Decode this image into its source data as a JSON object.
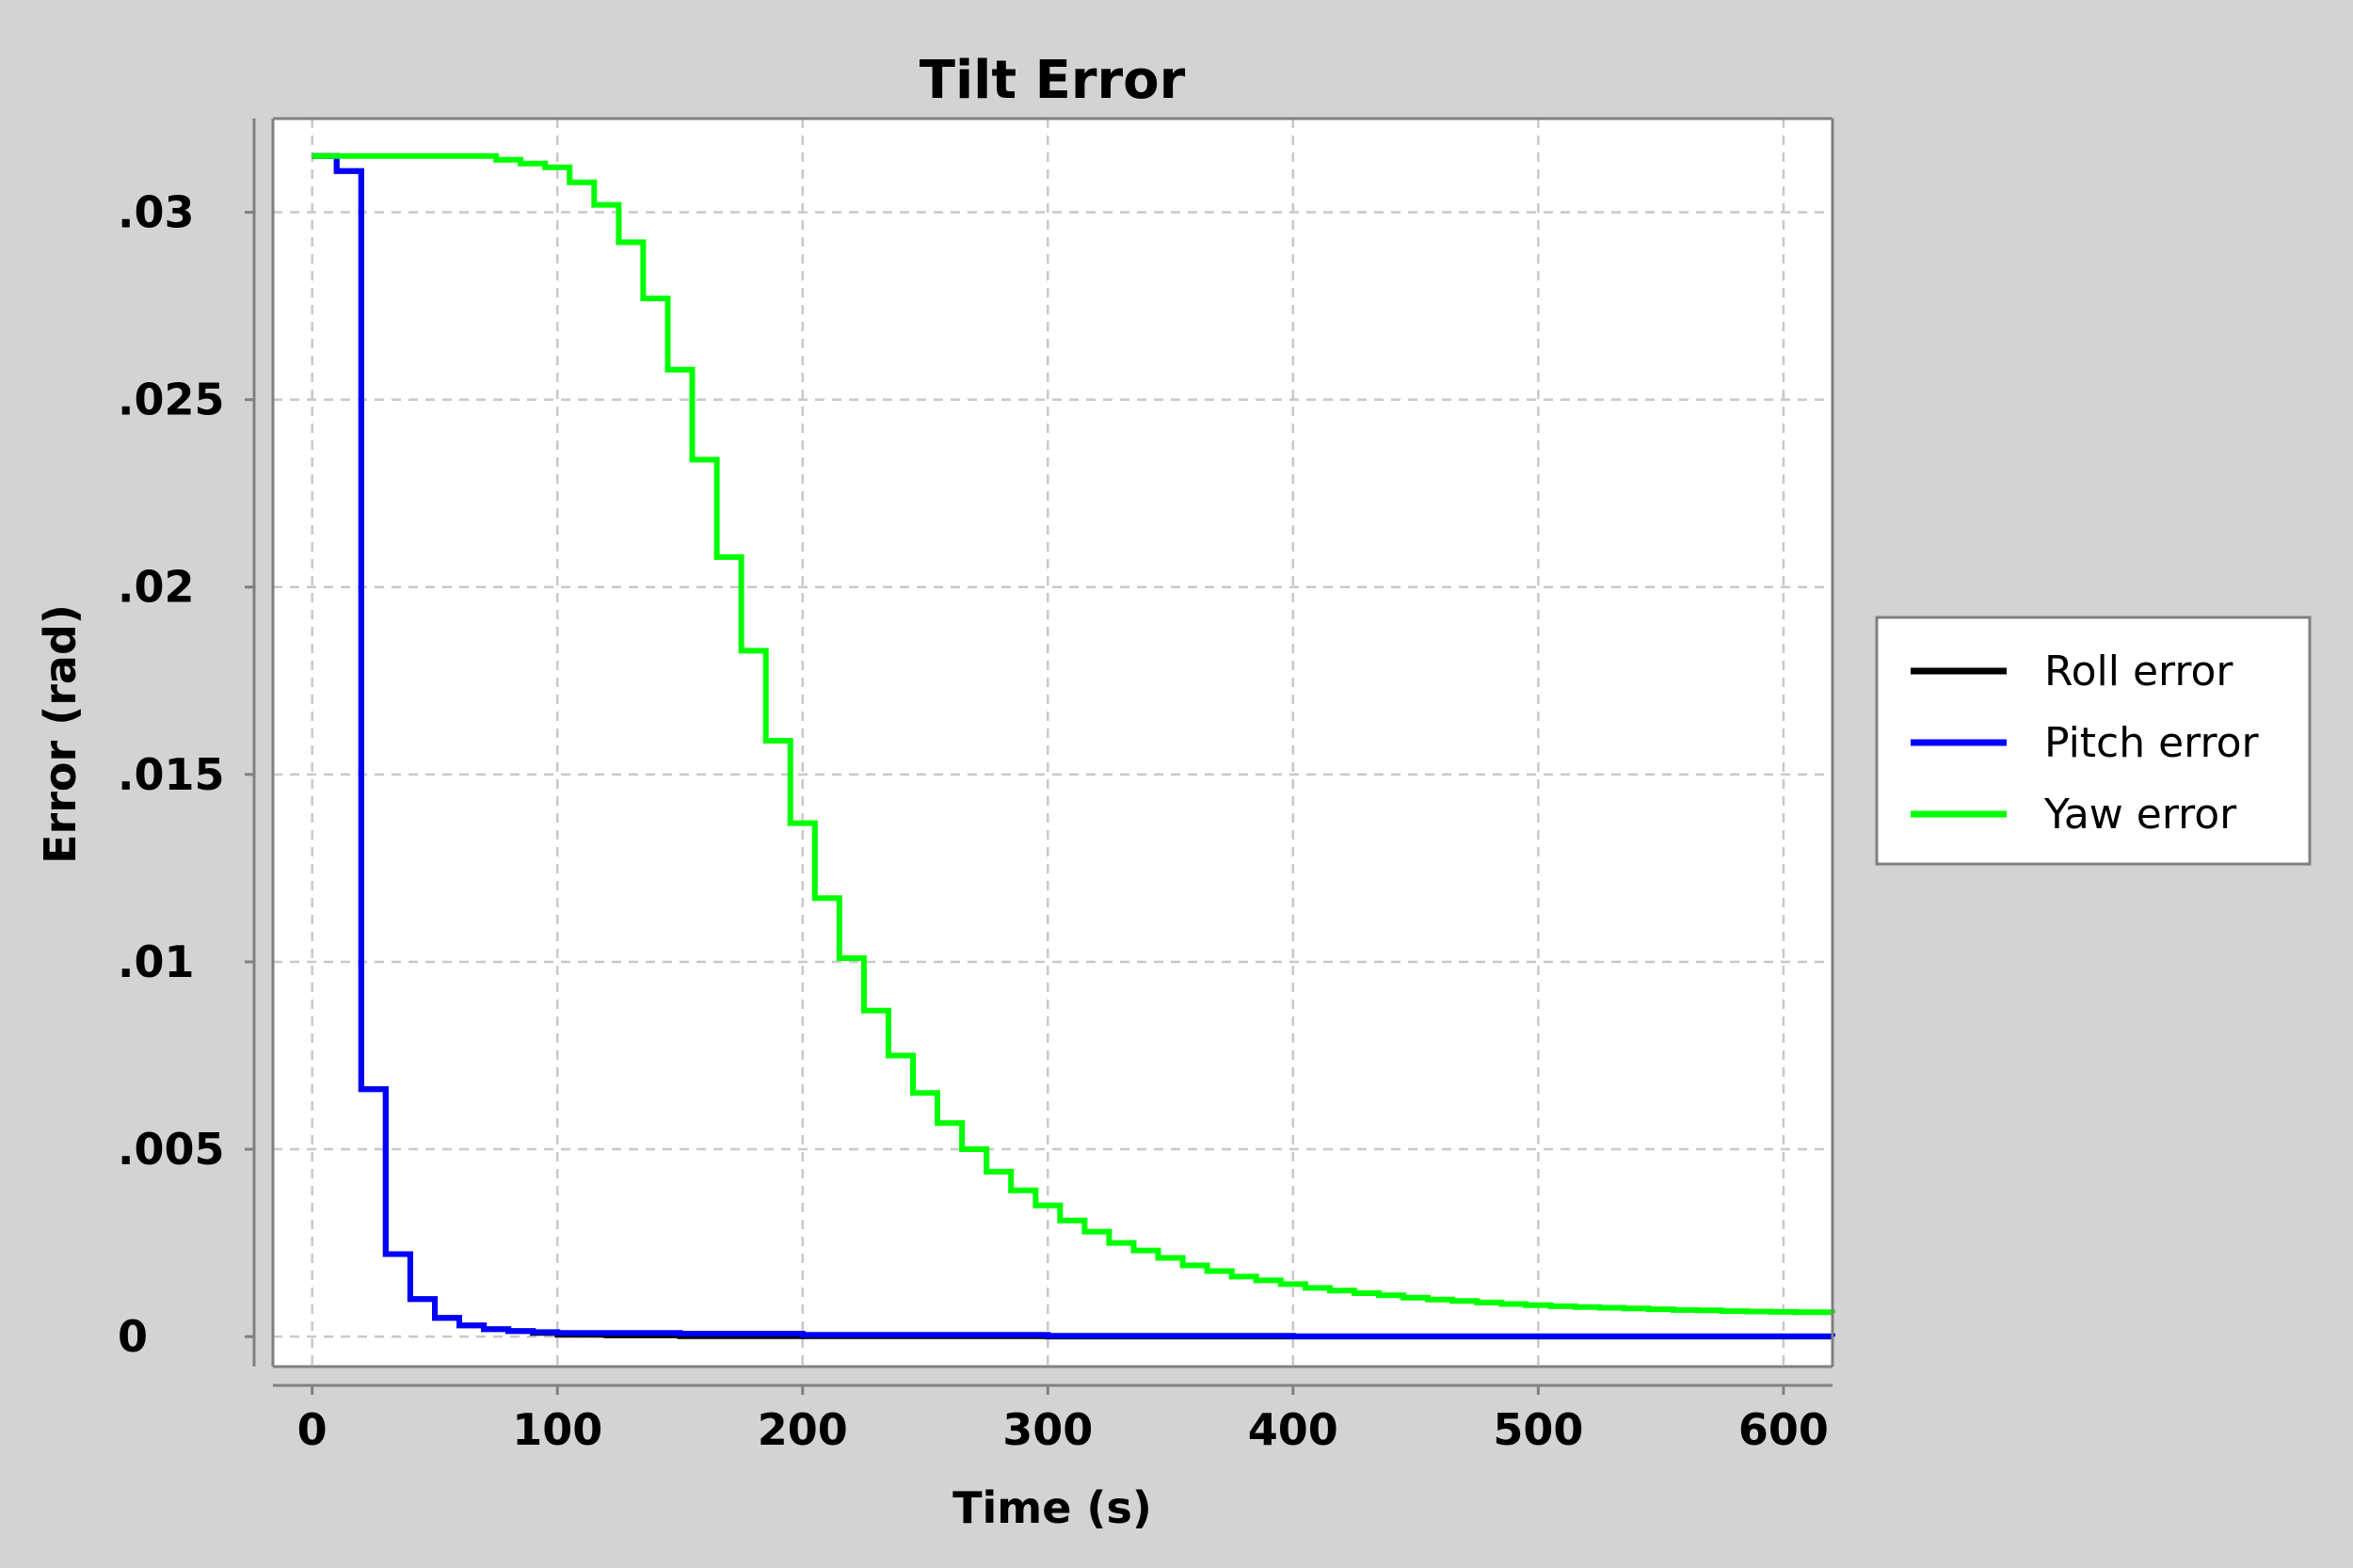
{
  "chart_data": {
    "type": "line",
    "title": "Tilt Error",
    "xlabel": "Time (s)",
    "ylabel": "Error (rad)",
    "xlim": [
      -16,
      620
    ],
    "ylim": [
      -0.0008,
      0.0325
    ],
    "xticks": [
      0,
      100,
      200,
      300,
      400,
      500,
      600
    ],
    "xtick_labels": [
      "0",
      "100",
      "200",
      "300",
      "400",
      "500",
      "600"
    ],
    "yticks": [
      0,
      0.005,
      0.01,
      0.015,
      0.02,
      0.025,
      0.03
    ],
    "ytick_labels": [
      "0",
      ".005",
      ".01",
      ".015",
      ".02",
      ".025",
      ".03"
    ],
    "grid": true,
    "legend_position": "outside-right",
    "step": true,
    "series": [
      {
        "name": "Roll error",
        "color": "#000000",
        "x": [
          0,
          10,
          20,
          30,
          40,
          50,
          60,
          70,
          80,
          90,
          100,
          120,
          150,
          200,
          300,
          400,
          500,
          620
        ],
        "y": [
          0.0315,
          0.0311,
          0.0066,
          0.0022,
          0.001,
          0.0005,
          0.0003,
          0.0002,
          0.00015,
          0.0001,
          5e-05,
          3e-05,
          1e-05,
          1e-05,
          0.0,
          0.0,
          0.0,
          0.0
        ]
      },
      {
        "name": "Pitch error",
        "color": "#0000ff",
        "x": [
          0,
          10,
          20,
          30,
          40,
          50,
          60,
          70,
          80,
          90,
          100,
          150,
          200,
          300,
          400,
          500,
          620
        ],
        "y": [
          0.0315,
          0.0311,
          0.0066,
          0.0022,
          0.001,
          0.0005,
          0.0003,
          0.0002,
          0.00015,
          0.00012,
          0.0001,
          8e-05,
          5e-05,
          2e-05,
          1e-05,
          1e-05,
          0.0
        ]
      },
      {
        "name": "Yaw error",
        "color": "#00ff00",
        "x": [
          0,
          30,
          60,
          75,
          85,
          95,
          105,
          115,
          125,
          135,
          145,
          155,
          165,
          175,
          185,
          195,
          205,
          215,
          225,
          235,
          245,
          255,
          265,
          275,
          285,
          295,
          305,
          315,
          325,
          335,
          345,
          355,
          365,
          375,
          385,
          395,
          405,
          415,
          425,
          435,
          445,
          455,
          465,
          475,
          485,
          495,
          505,
          515,
          525,
          535,
          545,
          555,
          565,
          575,
          585,
          595,
          605,
          620
        ],
        "y": [
          0.0315,
          0.0315,
          0.0315,
          0.0314,
          0.0313,
          0.0312,
          0.0308,
          0.0302,
          0.0292,
          0.0277,
          0.0258,
          0.0234,
          0.0208,
          0.0183,
          0.0159,
          0.0137,
          0.0117,
          0.0101,
          0.0087,
          0.0075,
          0.0065,
          0.0057,
          0.005,
          0.0044,
          0.0039,
          0.0035,
          0.0031,
          0.0028,
          0.0025,
          0.0023,
          0.0021,
          0.0019,
          0.00175,
          0.0016,
          0.0015,
          0.0014,
          0.0013,
          0.00123,
          0.00116,
          0.0011,
          0.00104,
          0.00099,
          0.00095,
          0.00091,
          0.00087,
          0.00084,
          0.00081,
          0.00079,
          0.00077,
          0.00075,
          0.00073,
          0.00071,
          0.0007,
          0.00068,
          0.00067,
          0.00066,
          0.00065,
          0.00063
        ]
      }
    ]
  }
}
